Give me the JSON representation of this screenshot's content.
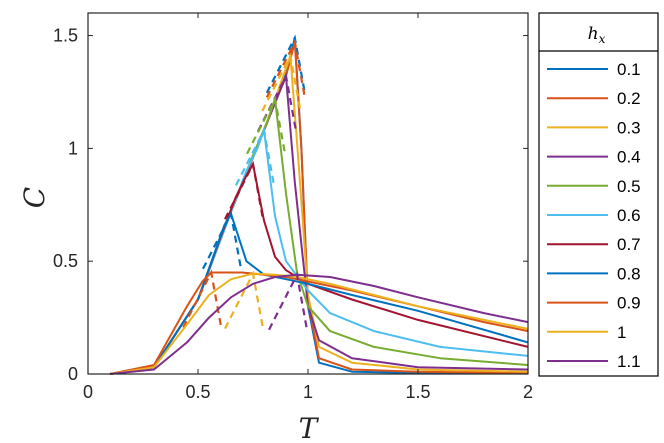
{
  "chart_data": {
    "type": "line",
    "xlabel": "T",
    "ylabel": "C",
    "xlim": [
      0,
      2
    ],
    "ylim": [
      0,
      1.6
    ],
    "xticks": [
      "0",
      "0.5",
      "1",
      "1.5",
      "2"
    ],
    "yticks": [
      "0",
      "0.5",
      "1",
      "1.5"
    ],
    "xtick_values": [
      0,
      0.5,
      1,
      1.5,
      2
    ],
    "ytick_values": [
      0,
      0.5,
      1,
      1.5
    ],
    "grid": false,
    "legend": {
      "title_main": "h",
      "title_sub": "x",
      "placement": "outside-right"
    },
    "series": [
      {
        "name": "0.1",
        "color": "#0072BD",
        "peak": [
          0.94,
          1.49
        ],
        "x": [
          0.1,
          0.3,
          0.5,
          0.65,
          0.8,
          0.9,
          0.94,
          0.97,
          1.0,
          1.05,
          1.2,
          1.5,
          2.0
        ],
        "y": [
          0,
          0.03,
          0.33,
          0.72,
          1.08,
          1.33,
          1.49,
          1.0,
          0.3,
          0.05,
          0.01,
          0.005,
          0.005
        ]
      },
      {
        "name": "0.2",
        "color": "#D95319",
        "peak": [
          0.94,
          1.47
        ],
        "x": [
          0.1,
          0.3,
          0.5,
          0.65,
          0.8,
          0.9,
          0.94,
          0.97,
          1.0,
          1.05,
          1.2,
          1.5,
          2.0
        ],
        "y": [
          0,
          0.03,
          0.33,
          0.72,
          1.08,
          1.32,
          1.47,
          1.0,
          0.32,
          0.07,
          0.02,
          0.01,
          0.005
        ]
      },
      {
        "name": "0.3",
        "color": "#EDB120",
        "peak": [
          0.92,
          1.41
        ],
        "x": [
          0.1,
          0.3,
          0.5,
          0.65,
          0.8,
          0.88,
          0.92,
          0.96,
          1.0,
          1.05,
          1.2,
          1.5,
          2.0
        ],
        "y": [
          0,
          0.03,
          0.33,
          0.72,
          1.08,
          1.3,
          1.41,
          0.9,
          0.35,
          0.12,
          0.05,
          0.02,
          0.01
        ]
      },
      {
        "name": "0.4",
        "color": "#7E2F8E",
        "peak": [
          0.9,
          1.32
        ],
        "x": [
          0.1,
          0.3,
          0.5,
          0.65,
          0.8,
          0.87,
          0.9,
          0.94,
          1.0,
          1.05,
          1.2,
          1.5,
          2.0
        ],
        "y": [
          0,
          0.03,
          0.33,
          0.72,
          1.08,
          1.25,
          1.32,
          0.85,
          0.3,
          0.15,
          0.07,
          0.03,
          0.02
        ]
      },
      {
        "name": "0.5",
        "color": "#77AC30",
        "peak": [
          0.85,
          1.22
        ],
        "x": [
          0.1,
          0.3,
          0.5,
          0.65,
          0.75,
          0.82,
          0.85,
          0.9,
          0.95,
          1.0,
          1.1,
          1.3,
          1.6,
          2.0
        ],
        "y": [
          0,
          0.03,
          0.33,
          0.72,
          0.97,
          1.13,
          1.22,
          0.8,
          0.45,
          0.3,
          0.19,
          0.12,
          0.07,
          0.04
        ]
      },
      {
        "name": "0.6",
        "color": "#4DBEEE",
        "peak": [
          0.8,
          1.08
        ],
        "x": [
          0.1,
          0.3,
          0.5,
          0.65,
          0.72,
          0.77,
          0.8,
          0.85,
          0.9,
          1.0,
          1.1,
          1.3,
          1.6,
          2.0
        ],
        "y": [
          0,
          0.03,
          0.33,
          0.72,
          0.9,
          1.0,
          1.08,
          0.7,
          0.5,
          0.37,
          0.27,
          0.19,
          0.12,
          0.08
        ]
      },
      {
        "name": "0.7",
        "color": "#A2142F",
        "peak": [
          0.75,
          0.93
        ],
        "x": [
          0.1,
          0.3,
          0.5,
          0.6,
          0.67,
          0.72,
          0.75,
          0.8,
          0.85,
          0.9,
          1.0,
          1.2,
          1.5,
          2.0
        ],
        "y": [
          0,
          0.03,
          0.33,
          0.6,
          0.78,
          0.88,
          0.93,
          0.68,
          0.52,
          0.46,
          0.4,
          0.33,
          0.24,
          0.12
        ]
      },
      {
        "name": "0.8",
        "color": "#0072BD",
        "peak": [
          0.65,
          0.71
        ],
        "x": [
          0.1,
          0.3,
          0.5,
          0.58,
          0.62,
          0.65,
          0.68,
          0.72,
          0.8,
          0.9,
          1.0,
          1.2,
          1.5,
          2.0
        ],
        "y": [
          0,
          0.03,
          0.33,
          0.55,
          0.66,
          0.71,
          0.62,
          0.5,
          0.44,
          0.42,
          0.4,
          0.35,
          0.28,
          0.14
        ]
      },
      {
        "name": "0.9",
        "color": "#D95319",
        "peak": [
          0.56,
          0.45
        ],
        "x": [
          0.1,
          0.3,
          0.45,
          0.52,
          0.56,
          0.6,
          0.7,
          0.8,
          0.9,
          1.0,
          1.2,
          1.5,
          1.8,
          2.0
        ],
        "y": [
          0,
          0.04,
          0.3,
          0.41,
          0.45,
          0.45,
          0.45,
          0.44,
          0.43,
          0.41,
          0.37,
          0.3,
          0.23,
          0.19
        ]
      },
      {
        "name": "1",
        "color": "#EDB120",
        "peak": [
          0.75,
          0.445
        ],
        "x": [
          0.1,
          0.3,
          0.45,
          0.55,
          0.65,
          0.75,
          0.85,
          0.95,
          1.1,
          1.3,
          1.5,
          1.8,
          2.0
        ],
        "y": [
          0,
          0.03,
          0.22,
          0.35,
          0.42,
          0.445,
          0.44,
          0.43,
          0.4,
          0.35,
          0.3,
          0.24,
          0.2
        ]
      },
      {
        "name": "1.1",
        "color": "#7E2F8E",
        "peak": [
          0.95,
          0.44
        ],
        "x": [
          0.1,
          0.3,
          0.45,
          0.55,
          0.65,
          0.75,
          0.85,
          0.95,
          1.1,
          1.3,
          1.5,
          1.8,
          2.0
        ],
        "y": [
          0,
          0.02,
          0.14,
          0.25,
          0.34,
          0.4,
          0.43,
          0.44,
          0.43,
          0.39,
          0.34,
          0.27,
          0.23
        ]
      }
    ]
  }
}
